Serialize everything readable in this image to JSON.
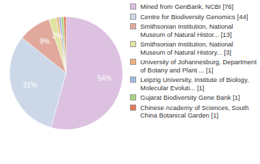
{
  "chart_data": {
    "type": "pie",
    "categories": [
      "Mined from GenBank, NCBI [76]",
      "Centre for Biodiversity Genomics [44]",
      "Smithsonian Institution, National Museum of Natural Histor... [13]",
      "Smithsonian Institution, National Museum of Natural History... [3]",
      "University of Johannesburg, Department of Botany and Plant ... [1]",
      "Leipzig University, Institute of Biology, Molecular Evoluti... [1]",
      "Gujarat Biodiversity Gene Bank [1]",
      "Chinese Academy of Sciences, South China Botanical Garden [1]"
    ],
    "values": [
      54.3,
      31.4,
      9.3,
      2.1,
      0.7,
      0.7,
      0.7,
      0.7
    ],
    "value_labels": [
      "54%",
      "31%",
      "9%",
      "2%",
      null,
      null,
      null,
      null
    ],
    "colors": [
      "#dcc1e0",
      "#ccd8e8",
      "#e1a89c",
      "#e0e4a2",
      "#efb27c",
      "#a3bbe0",
      "#a9d27e",
      "#e07a5a"
    ],
    "data_labels": true,
    "legend": "right"
  }
}
